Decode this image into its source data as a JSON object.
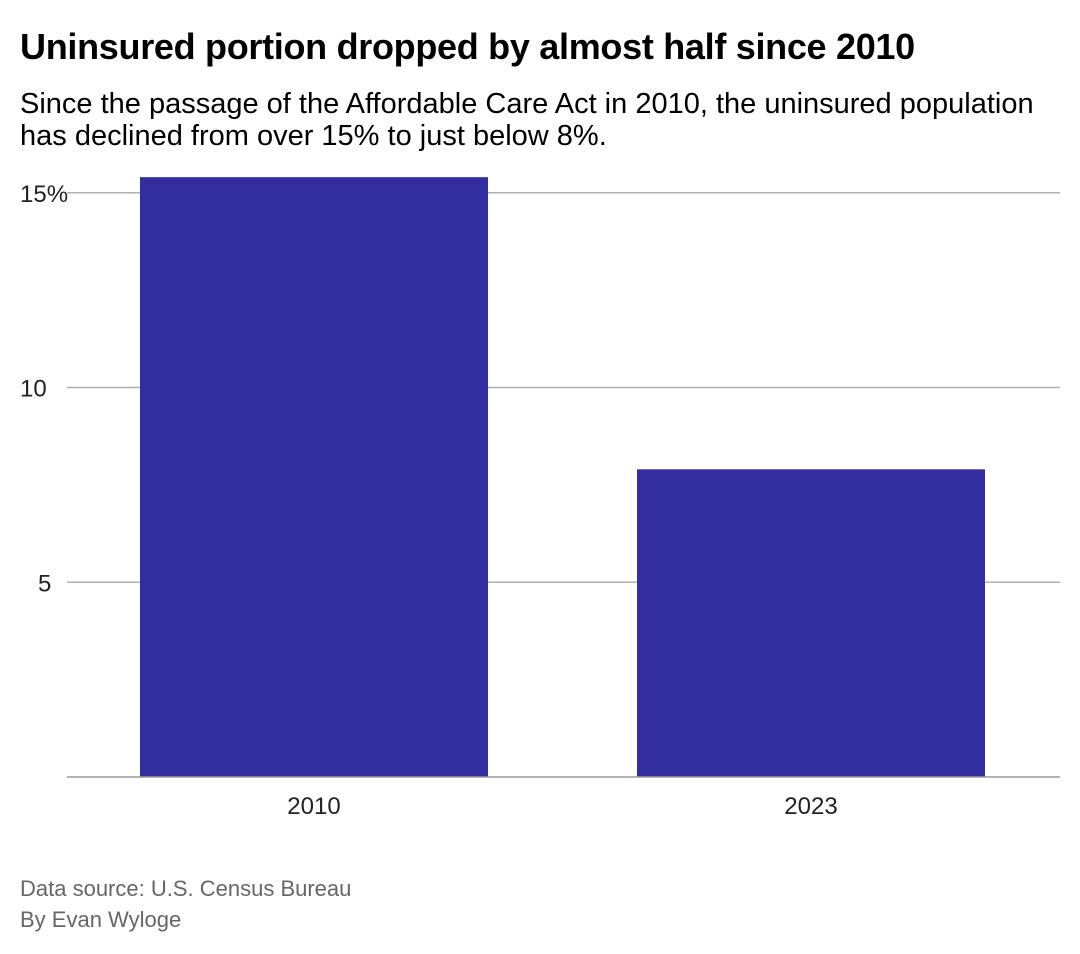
{
  "chart_data": {
    "type": "bar",
    "title": "Uninsured portion dropped by almost half since 2010",
    "subtitle": "Since the passage of the Affordable Care Act in 2010, the uninsured population has declined from over 15% to just below 8%.",
    "categories": [
      "2010",
      "2023"
    ],
    "values": [
      15.4,
      7.9
    ],
    "ylim": [
      0,
      15.4
    ],
    "yticks": [
      5,
      10,
      15
    ],
    "ytick_labels": [
      "5",
      "10",
      "15%"
    ],
    "grid": true,
    "bar_color": "#332ea0",
    "xlabel": "",
    "ylabel": ""
  },
  "footer": {
    "source": "Data source: U.S. Census Bureau",
    "byline": "By Evan Wyloge"
  }
}
